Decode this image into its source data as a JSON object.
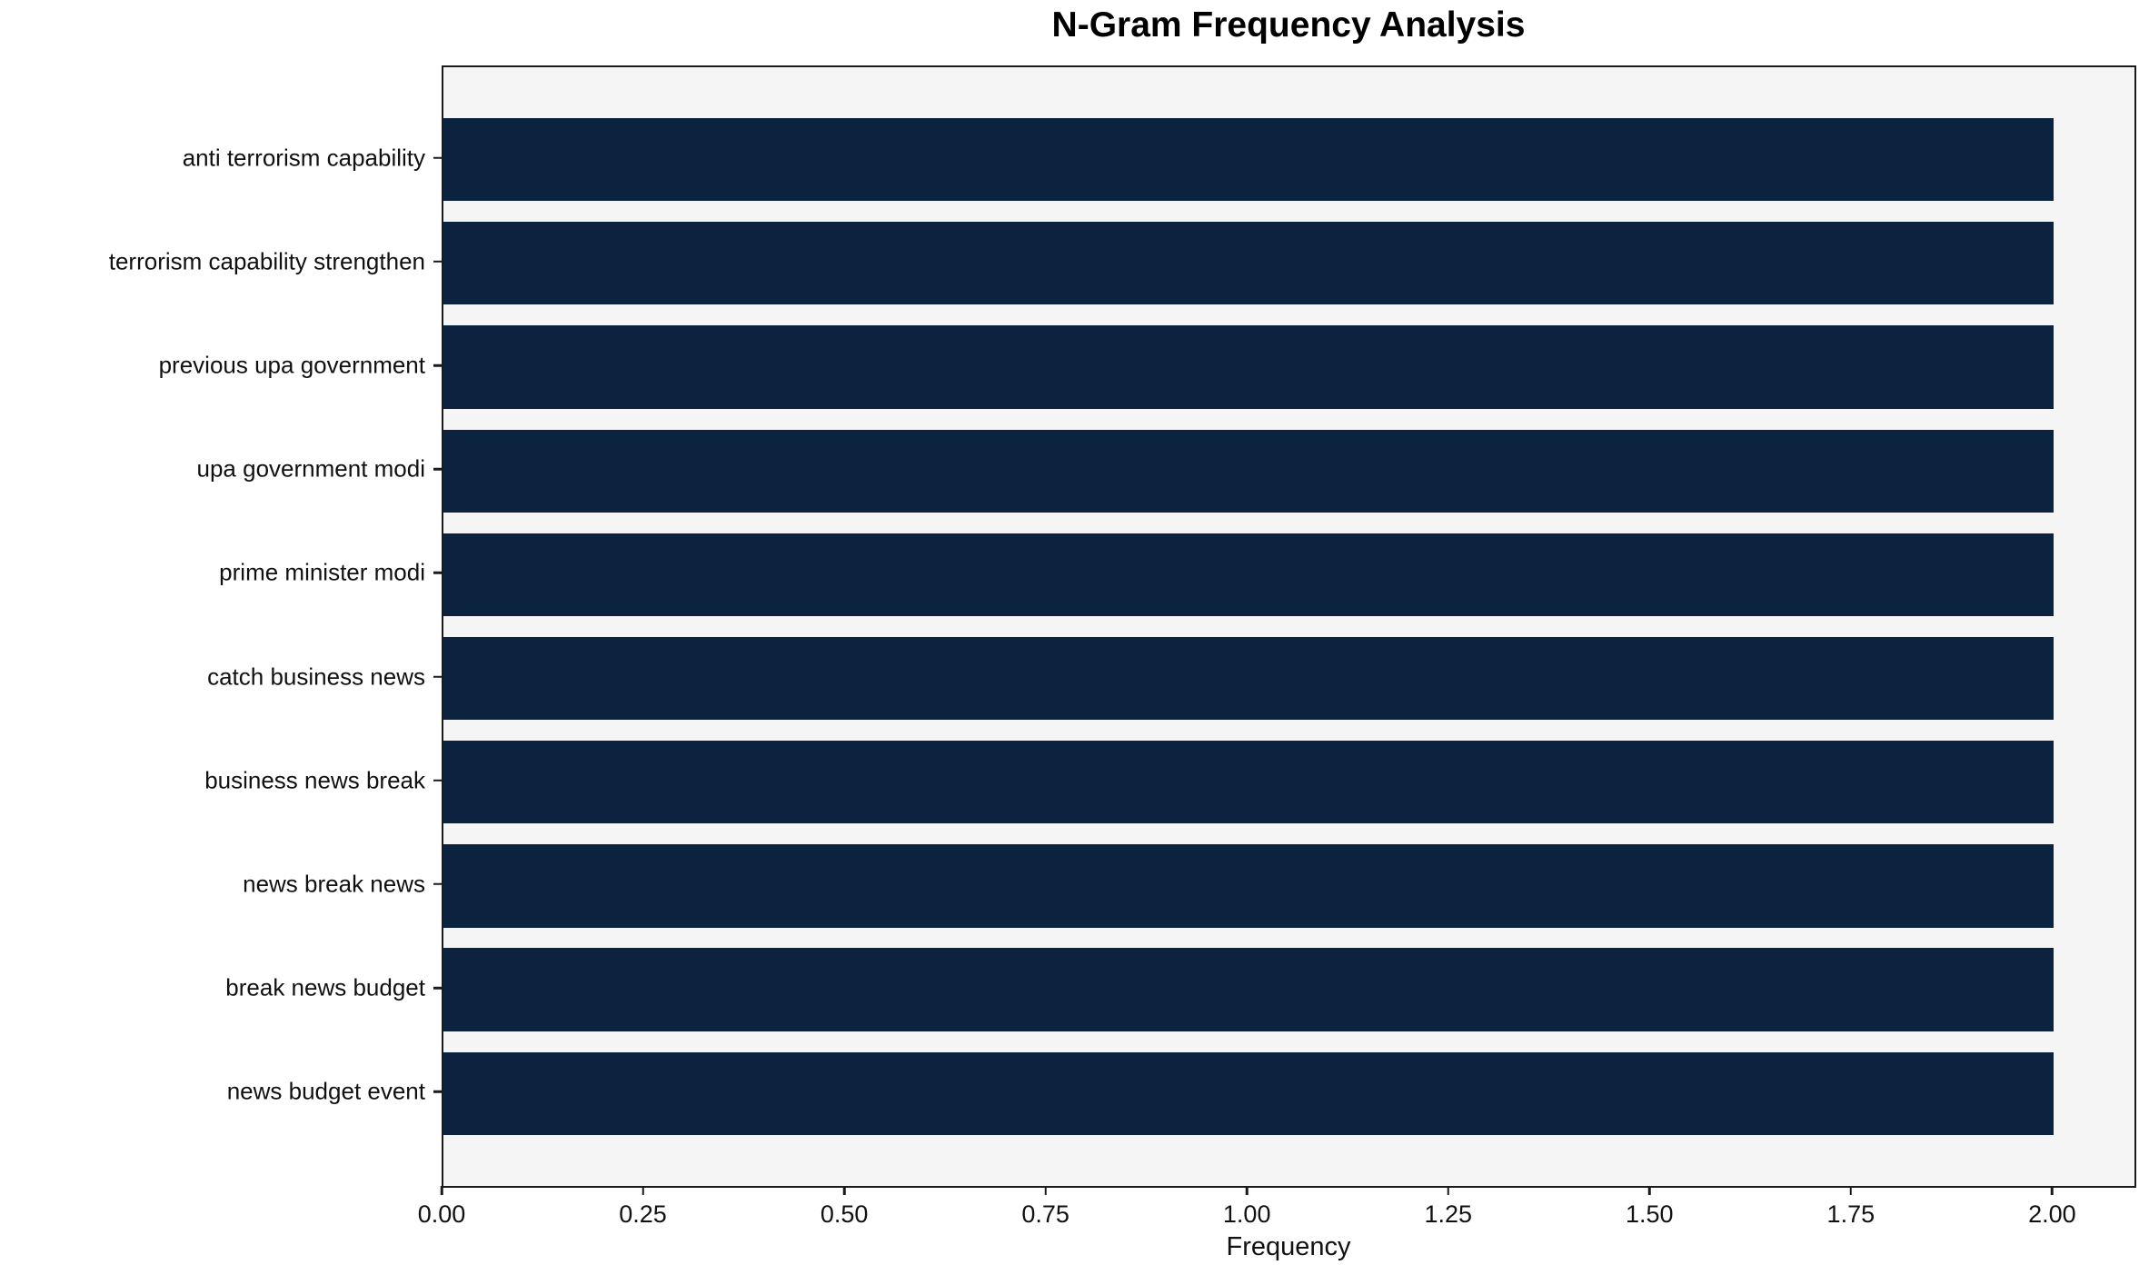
{
  "chart_data": {
    "type": "bar",
    "orientation": "horizontal",
    "title": "N-Gram Frequency Analysis",
    "xlabel": "Frequency",
    "ylabel": "",
    "categories": [
      "anti terrorism capability",
      "terrorism capability strengthen",
      "previous upa government",
      "upa government modi",
      "prime minister modi",
      "catch business news",
      "business news break",
      "news break news",
      "break news budget",
      "news budget event"
    ],
    "values": [
      2,
      2,
      2,
      2,
      2,
      2,
      2,
      2,
      2,
      2
    ],
    "xlim": [
      0,
      2.1
    ],
    "xticks": [
      {
        "value": 0.0,
        "label": "0.00"
      },
      {
        "value": 0.25,
        "label": "0.25"
      },
      {
        "value": 0.5,
        "label": "0.50"
      },
      {
        "value": 0.75,
        "label": "0.75"
      },
      {
        "value": 1.0,
        "label": "1.00"
      },
      {
        "value": 1.25,
        "label": "1.25"
      },
      {
        "value": 1.5,
        "label": "1.50"
      },
      {
        "value": 1.75,
        "label": "1.75"
      },
      {
        "value": 2.0,
        "label": "2.00"
      }
    ],
    "grid": false,
    "legend": null,
    "bar_color": "#0c2340",
    "plot_background": "#f5f5f5",
    "figure_background": "#ffffff"
  }
}
